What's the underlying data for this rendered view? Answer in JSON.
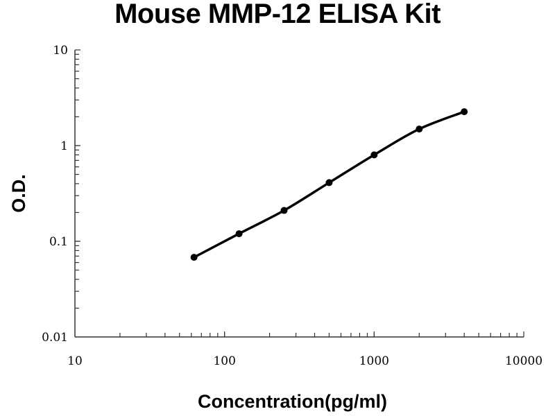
{
  "chart_data": {
    "type": "line",
    "title": "Mouse MMP-12 ELISA Kit",
    "xlabel": "Concentration(pg/ml)",
    "ylabel": "O.D.",
    "x_scale": "log",
    "y_scale": "log",
    "xlim": [
      10,
      10000
    ],
    "ylim": [
      0.01,
      10
    ],
    "x_ticks": [
      "10",
      "100",
      "1000",
      "10000"
    ],
    "y_ticks": [
      "0.01",
      "0.1",
      "1",
      "10"
    ],
    "grid": false,
    "series": [
      {
        "x": [
          62.5,
          125,
          250,
          500,
          1000,
          2000,
          4000
        ],
        "y": [
          0.068,
          0.12,
          0.21,
          0.41,
          0.8,
          1.49,
          2.26
        ],
        "color": "#000000",
        "marker": "circle",
        "smooth": true
      }
    ]
  }
}
